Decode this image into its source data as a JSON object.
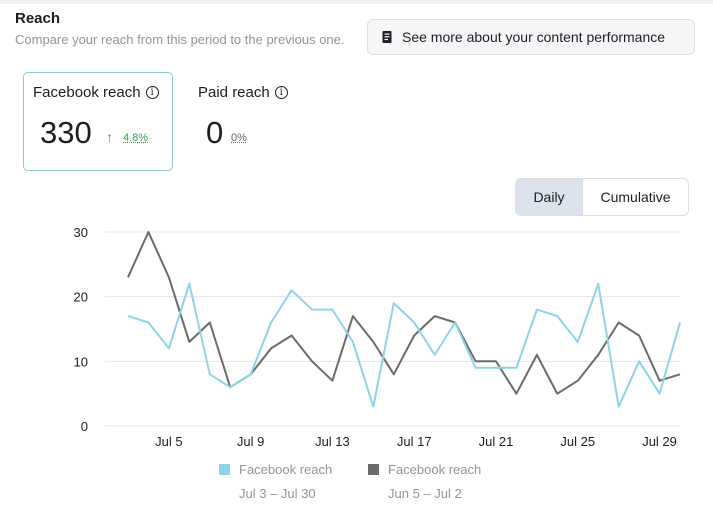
{
  "header": {
    "title": "Reach",
    "subtitle": "Compare your reach from this period to the previous one.",
    "performance_button": "See more about your content performance"
  },
  "metrics": [
    {
      "label": "Facebook reach",
      "value": "330",
      "change": "4.8%",
      "trend": "up",
      "selected": true
    },
    {
      "label": "Paid reach",
      "value": "0",
      "change": "0%",
      "selected": false
    }
  ],
  "view_toggle": {
    "options": [
      "Daily",
      "Cumulative"
    ],
    "selected": "Daily"
  },
  "colors": {
    "current": "#8fd3ea",
    "previous": "#6b6b6b",
    "up": "#31a24c"
  },
  "icons": {
    "performance_button": "document-icon",
    "metric_info": "info-icon",
    "trend": "arrow-up-icon"
  },
  "chart_data": {
    "type": "line",
    "y_ticks": [
      0,
      10,
      20,
      30
    ],
    "ylim": [
      0,
      30
    ],
    "x_tick_labels": [
      "Jul 5",
      "Jul 9",
      "Jul 13",
      "Jul 17",
      "Jul 21",
      "Jul 25",
      "Jul 29"
    ],
    "x_tick_indices": [
      2,
      6,
      10,
      14,
      18,
      22,
      26
    ],
    "grid": true,
    "legend_position": "bottom",
    "series": [
      {
        "name": "Facebook reach",
        "range": "Jul 3 – Jul 30",
        "color": "#8fd3ea",
        "values": [
          17,
          16,
          12,
          22,
          8,
          6,
          8,
          16,
          21,
          18,
          18,
          13,
          3,
          19,
          16,
          11,
          16,
          9,
          9,
          9,
          18,
          17,
          13,
          22,
          3,
          10,
          5,
          16
        ]
      },
      {
        "name": "Facebook reach",
        "range": "Jun 5 – Jul 2",
        "color": "#6b6b6b",
        "values": [
          23,
          30,
          23,
          13,
          16,
          6,
          8,
          12,
          14,
          10,
          7,
          17,
          13,
          8,
          14,
          17,
          16,
          10,
          10,
          5,
          11,
          5,
          7,
          11,
          16,
          14,
          7,
          8
        ]
      }
    ]
  }
}
